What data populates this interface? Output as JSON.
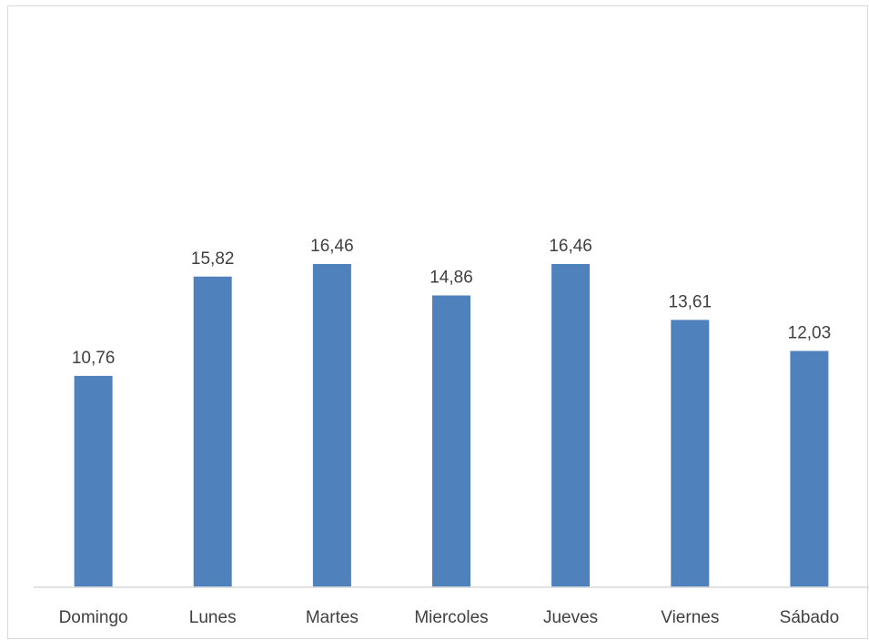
{
  "chart_data": {
    "type": "bar",
    "categories": [
      "Domingo",
      "Lunes",
      "Martes",
      "Miercoles",
      "Jueves",
      "Viernes",
      "Sábado"
    ],
    "values": [
      10.76,
      15.82,
      16.46,
      14.86,
      16.46,
      13.61,
      12.03
    ],
    "value_labels": [
      "10,76",
      "15,82",
      "16,46",
      "14,86",
      "16,46",
      "13,61",
      "12,03"
    ],
    "title": "",
    "xlabel": "",
    "ylabel": "",
    "ylim": [
      0,
      18
    ],
    "grid": false,
    "legend": "none",
    "colors": {
      "bar": "#4f81bd",
      "axis": "#d9d9d9",
      "text": "#404040"
    }
  }
}
